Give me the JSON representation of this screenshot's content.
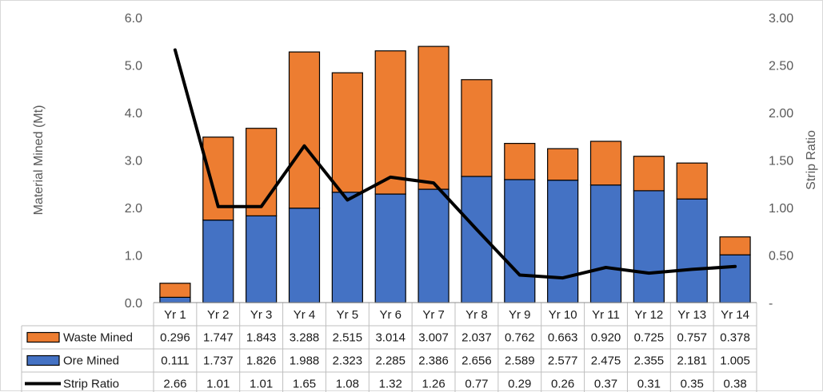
{
  "chart_data": {
    "type": "bar",
    "stacked": true,
    "categories": [
      "Yr 1",
      "Yr 2",
      "Yr 3",
      "Yr 4",
      "Yr 5",
      "Yr 6",
      "Yr 7",
      "Yr 8",
      "Yr 9",
      "Yr 10",
      "Yr 11",
      "Yr 12",
      "Yr 13",
      "Yr 14"
    ],
    "series": [
      {
        "name": "Waste Mined",
        "kind": "bar",
        "axis": "left",
        "color": "#ed7d31",
        "values": [
          0.296,
          1.747,
          1.843,
          3.288,
          2.515,
          3.014,
          3.007,
          2.037,
          0.762,
          0.663,
          0.92,
          0.725,
          0.757,
          0.378
        ],
        "labels": [
          "0.296",
          "1.747",
          "1.843",
          "3.288",
          "2.515",
          "3.014",
          "3.007",
          "2.037",
          "0.762",
          "0.663",
          "0.920",
          "0.725",
          "0.757",
          "0.378"
        ]
      },
      {
        "name": "Ore Mined",
        "kind": "bar",
        "axis": "left",
        "color": "#4472c4",
        "values": [
          0.111,
          1.737,
          1.826,
          1.988,
          2.323,
          2.285,
          2.386,
          2.656,
          2.589,
          2.577,
          2.475,
          2.355,
          2.181,
          1.005
        ],
        "labels": [
          "0.111",
          "1.737",
          "1.826",
          "1.988",
          "2.323",
          "2.285",
          "2.386",
          "2.656",
          "2.589",
          "2.577",
          "2.475",
          "2.355",
          "2.181",
          "1.005"
        ]
      },
      {
        "name": "Strip Ratio",
        "kind": "line",
        "axis": "right",
        "color": "#000000",
        "values": [
          2.66,
          1.01,
          1.01,
          1.65,
          1.08,
          1.32,
          1.26,
          0.77,
          0.29,
          0.26,
          0.37,
          0.31,
          0.35,
          0.38
        ],
        "labels": [
          "2.66",
          "1.01",
          "1.01",
          "1.65",
          "1.08",
          "1.32",
          "1.26",
          "0.77",
          "0.29",
          "0.26",
          "0.37",
          "0.31",
          "0.35",
          "0.38"
        ]
      }
    ],
    "ylabel": "Material Mined (Mt)",
    "y2label": "Strip Ratio",
    "ylim": [
      0,
      6
    ],
    "y2lim": [
      0,
      3
    ],
    "yticks": [
      "0.0",
      "1.0",
      "2.0",
      "3.0",
      "4.0",
      "5.0",
      "6.0"
    ],
    "y2ticks": [
      "-",
      "0.50",
      "1.00",
      "1.50",
      "2.00",
      "2.50",
      "3.00"
    ],
    "grid": false,
    "legend": "data-table"
  }
}
